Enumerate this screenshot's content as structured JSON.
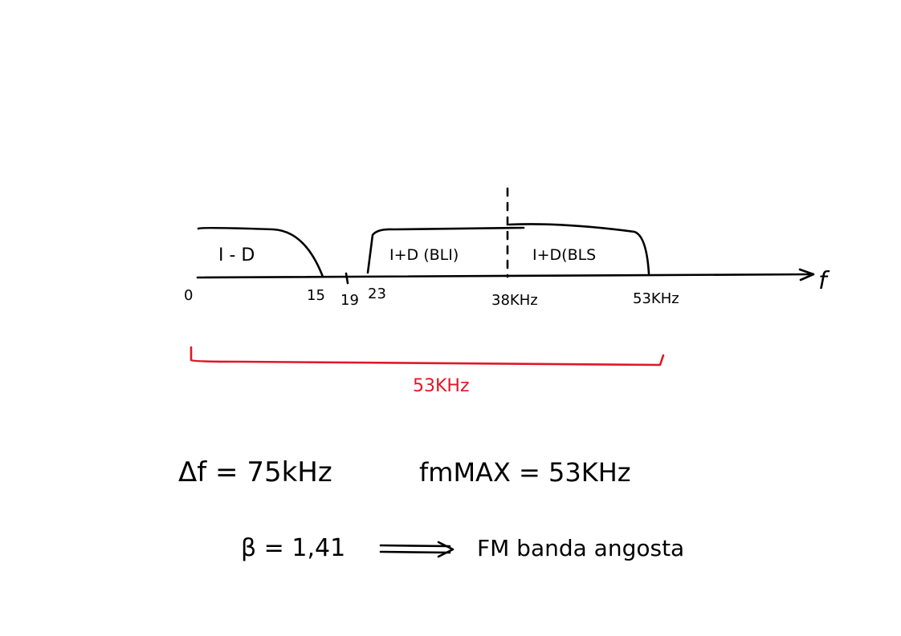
{
  "spectrum": {
    "axis_variable": "f",
    "origin": "0",
    "ticks": [
      "15",
      "19",
      "23",
      "38KHz",
      "53KHz"
    ],
    "bands": {
      "left": "I - D",
      "middle": "I+D (BLI)",
      "right": "I+D(BLS"
    },
    "bandwidth": "53KHz"
  },
  "formulas": {
    "delta_f": "Δf = 75kHz",
    "fm_max": "fmMAX = 53KHz",
    "beta": "β = 1,41",
    "conclusion": "FM banda angosta"
  },
  "colors": {
    "ink": "#000000",
    "highlight": "#e0172a"
  }
}
